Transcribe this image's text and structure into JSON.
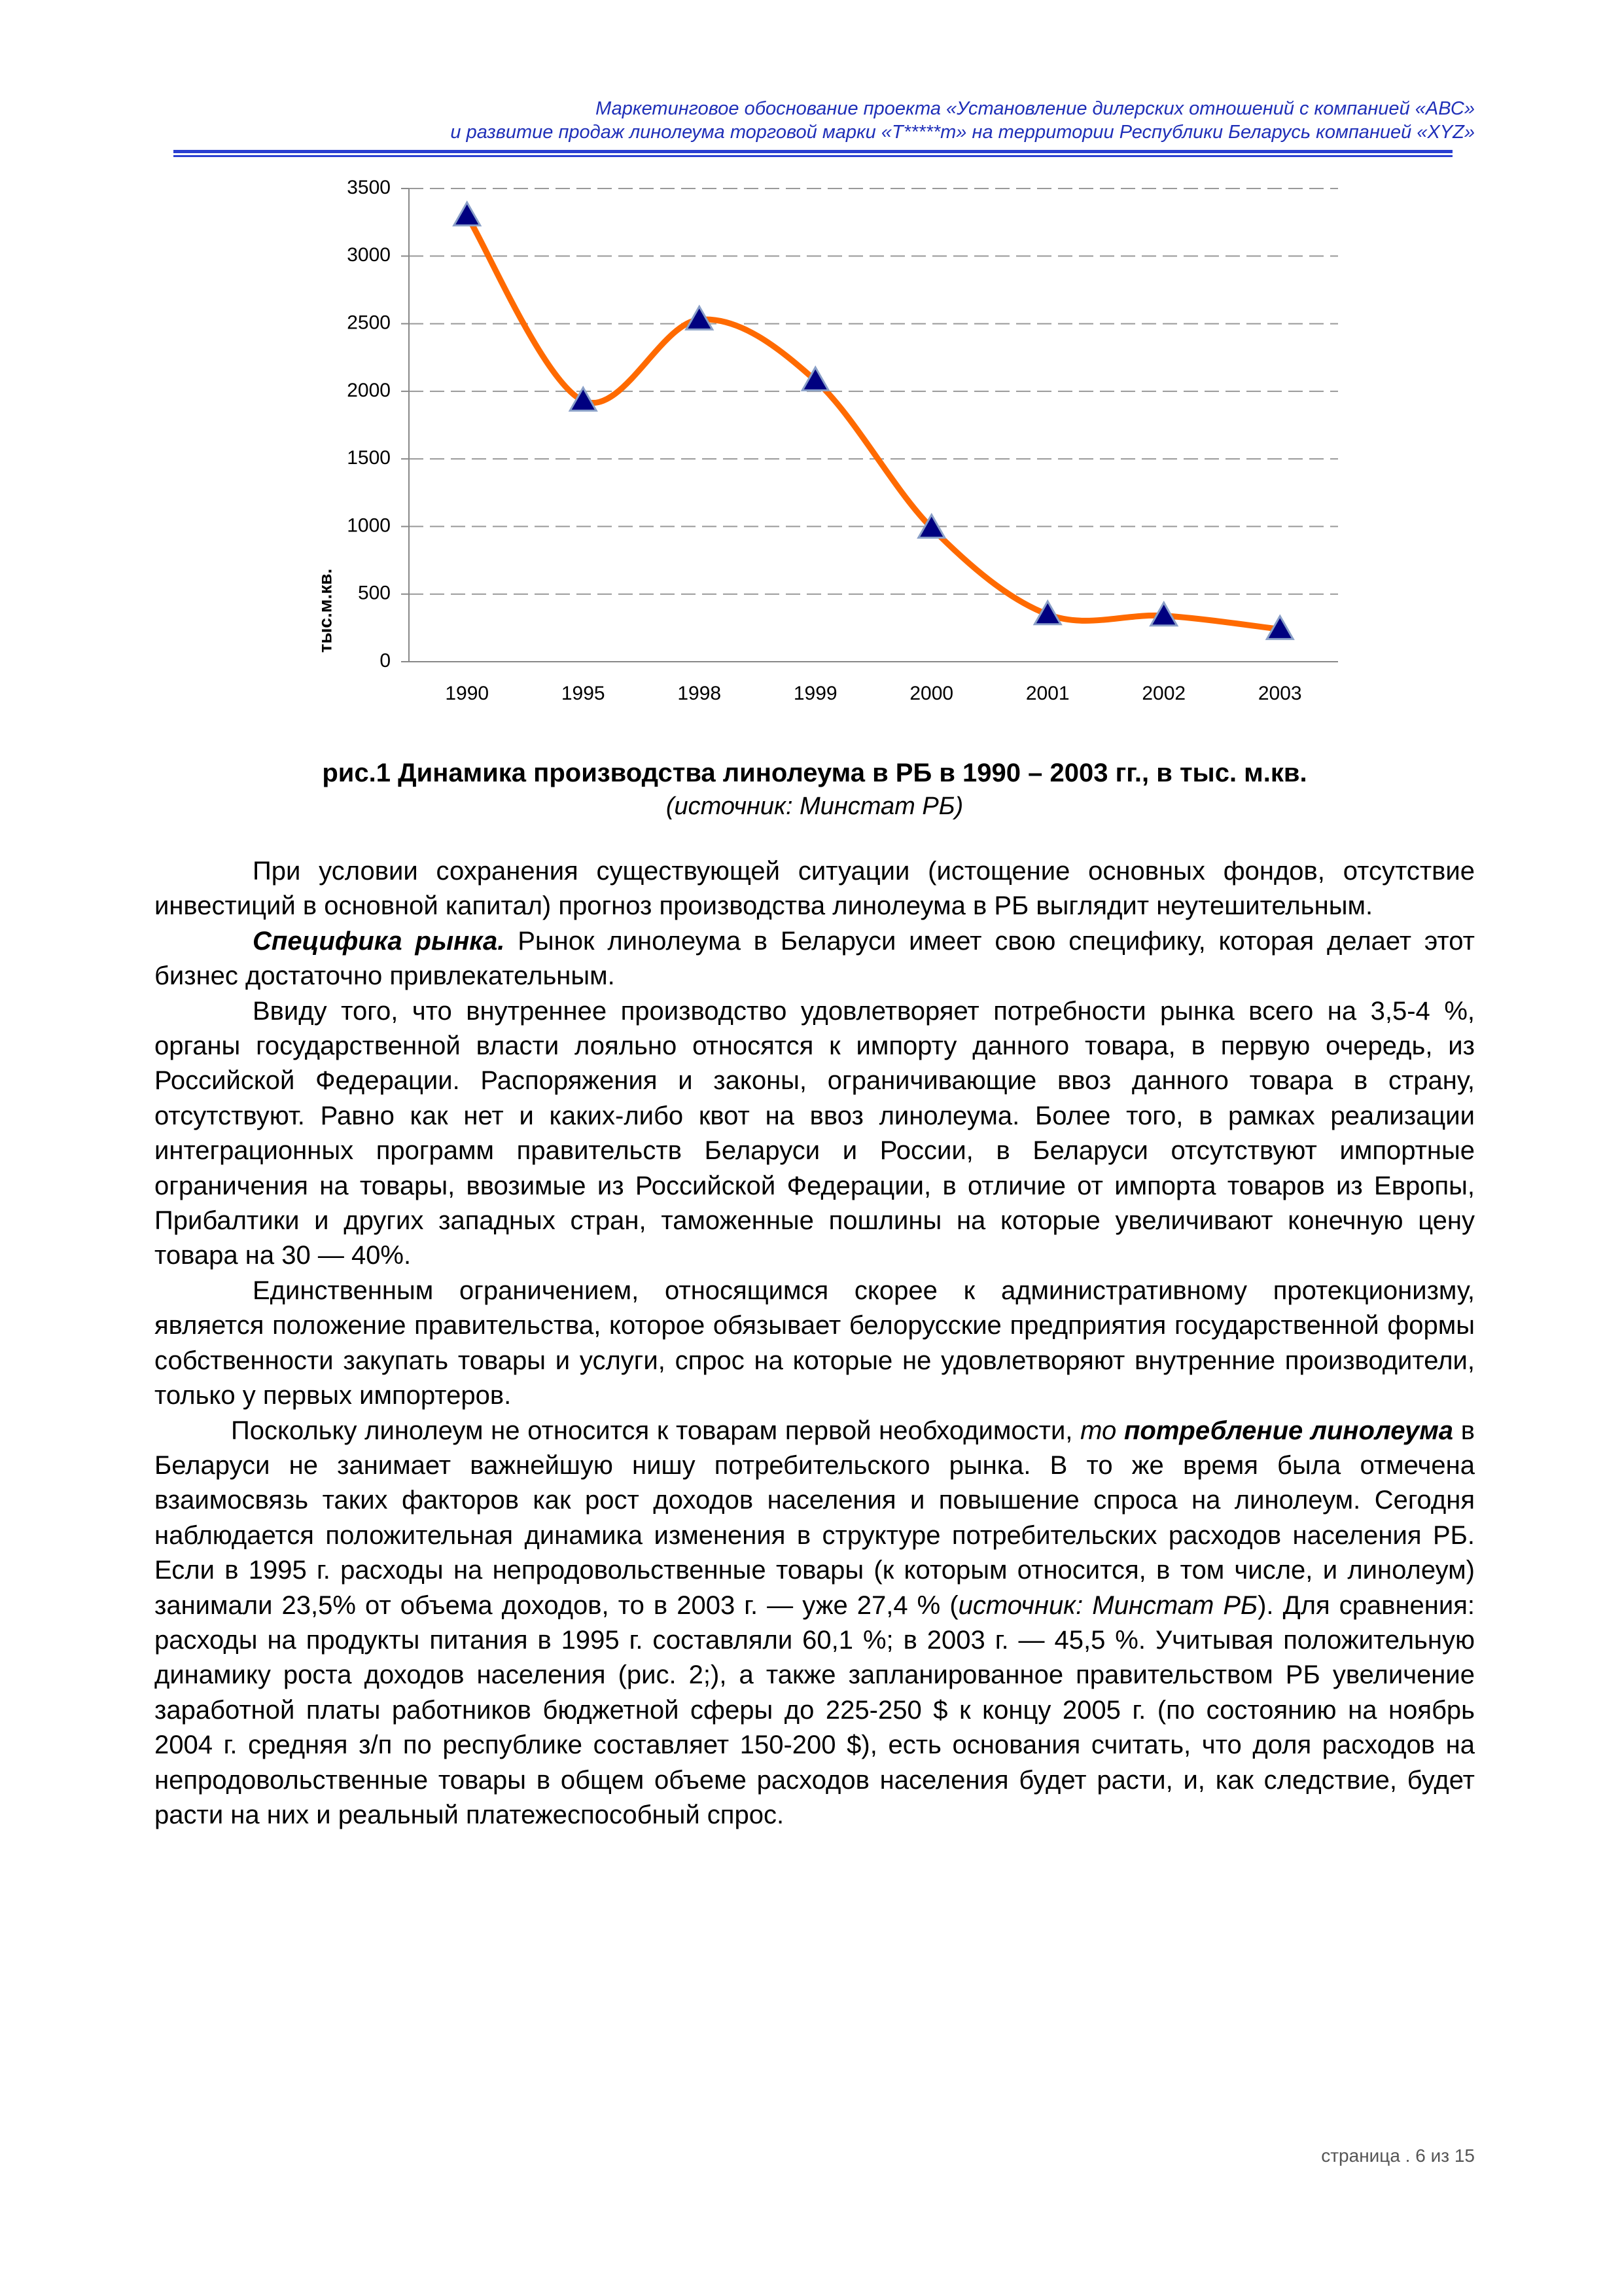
{
  "header": {
    "lines": [
      "Маркетинговое обоснование проекта «Установление дилерских отношений с компанией «АВС»",
      "и развитие продаж линолеума торговой марки «Т*****т» на территории Республики Беларусь компанией «XYZ»"
    ]
  },
  "chart_data": {
    "type": "line",
    "y_label": "тыс.м.кв.",
    "categories": [
      "1990",
      "1995",
      "1998",
      "1999",
      "2000",
      "2001",
      "2002",
      "2003"
    ],
    "series": [
      {
        "color": "#ff6a00",
        "marker_color": "#000080",
        "values": [
          3300,
          1930,
          2530,
          2080,
          990,
          350,
          340,
          240
        ]
      }
    ],
    "ylim": [
      0,
      3500
    ],
    "yticks": [
      0,
      500,
      1000,
      1500,
      2000,
      2500,
      3000,
      3500
    ],
    "grid": true
  },
  "caption": {
    "title": "рис.1 Динамика производства линолеума в РБ в 1990 – 2003 гг., в тыс. м.кв.",
    "source": "(источник: Минстат РБ)"
  },
  "body": {
    "paragraphs": [
      [
        "При условии сохранения существующей ситуации (истощение основных фондов, отсутствие инвестиций в основной капитал) прогноз производства линолеума в РБ выглядит неутешительным."
      ],
      [
        "Специфика рынка.",
        " Рынок линолеума в Беларуси имеет свою специфику, которая делает этот бизнес достаточно привлекательным."
      ],
      [
        "Ввиду того, что внутреннее производство удовлетворяет потребности рынка всего на 3,5-4 %, органы государственной власти лояльно относятся к импорту данного товара, в первую очередь, из Российской Федерации. Распоряжения и законы, ограничивающие ввоз данного товара в страну, отсутствуют. Равно как нет и каких-либо квот на ввоз линолеума. Более того, в рамках реализации интеграционных программ правительств Беларуси и России, в Беларуси отсутствуют импортные ограничения на товары, ввозимые из Российской Федерации, в отличие от импорта товаров из Европы, Прибалтики и других западных стран, таможенные пошлины на которые увеличивают конечную цену товара на 30 — 40%."
      ],
      [
        "Единственным ограничением, относящимся скорее к административному протекционизму, является положение правительства, которое обязывает белорусские предприятия государственной формы собственности закупать товары и услуги, спрос на которые не удовлетворяют внутренние производители, только у первых импортеров."
      ],
      [
        "Поскольку линолеум не относится к товарам первой необходимости, ",
        "то",
        "потребление линолеума",
        " в Беларуси не занимает важнейшую нишу потребительского рынка. В то же время была отмечена взаимосвязь таких факторов как рост доходов населения и повышение спроса на линолеум. Сегодня наблюдается положительная динамика изменения в структуре потребительских расходов населения РБ. Если в 1995 г. расходы на непродовольственные товары (к которым относится, в том числе, и линолеум) занимали 23,5% от объема доходов, то в 2003 г. — уже 27,4 % (",
        "источник: Минстат РБ",
        "). Для сравнения: расходы на продукты питания в 1995 г. составляли 60,1 %; в 2003 г. — 45,5 %. Учитывая положительную динамику роста доходов населения (рис. 2;), а также запланированное правительством РБ увеличение заработной платы работников бюджетной сферы до 225-250 $ к концу 2005 г. (по состоянию на ноябрь 2004 г. средняя з/п по республике составляет 150-200 $), есть основания считать, что доля расходов на непродовольственные товары в общем объеме расходов населения будет расти, и, как следствие, будет расти на них и реальный платежеспособный спрос."
      ]
    ]
  },
  "footer": {
    "page": "страница . 6 из 15"
  }
}
